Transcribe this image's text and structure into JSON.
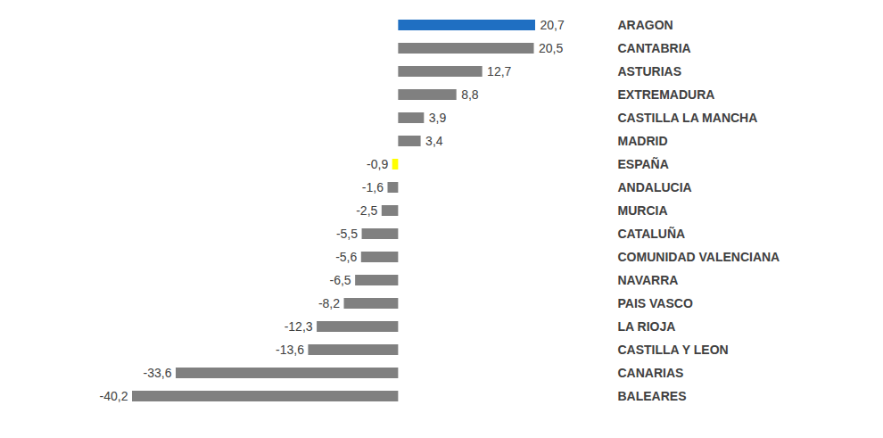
{
  "chart_data": {
    "type": "bar",
    "orientation": "horizontal",
    "categories": [
      "ARAGON",
      "CANTABRIA",
      "ASTURIAS",
      "EXTREMADURA",
      "CASTILLA LA MANCHA",
      "MADRID",
      "ESPAÑA",
      "ANDALUCIA",
      "MURCIA",
      "CATALUÑA",
      "COMUNIDAD VALENCIANA",
      "NAVARRA",
      "PAIS VASCO",
      "LA RIOJA",
      "CASTILLA Y LEON",
      "CANARIAS",
      "BALEARES"
    ],
    "values": [
      20.7,
      20.5,
      12.7,
      8.8,
      3.9,
      3.4,
      -0.9,
      -1.6,
      -2.5,
      -5.5,
      -5.6,
      -6.5,
      -8.2,
      -12.3,
      -13.6,
      -33.6,
      -40.2
    ],
    "value_labels": [
      "20,7",
      "20,5",
      "12,7",
      "8,8",
      "3,9",
      "3,4",
      "-0,9",
      "-1,6",
      "-2,5",
      "-5,5",
      "-5,6",
      "-6,5",
      "-8,2",
      "-12,3",
      "-13,6",
      "-33,6",
      "-40,2"
    ],
    "colors": [
      "#1f6fc2",
      "#808080",
      "#808080",
      "#808080",
      "#808080",
      "#808080",
      "#ffff00",
      "#808080",
      "#808080",
      "#808080",
      "#808080",
      "#808080",
      "#808080",
      "#808080",
      "#808080",
      "#808080",
      "#808080"
    ],
    "xlim": [
      -40.2,
      20.7
    ],
    "data_labels": true,
    "tick_labels": false,
    "grid": false
  }
}
